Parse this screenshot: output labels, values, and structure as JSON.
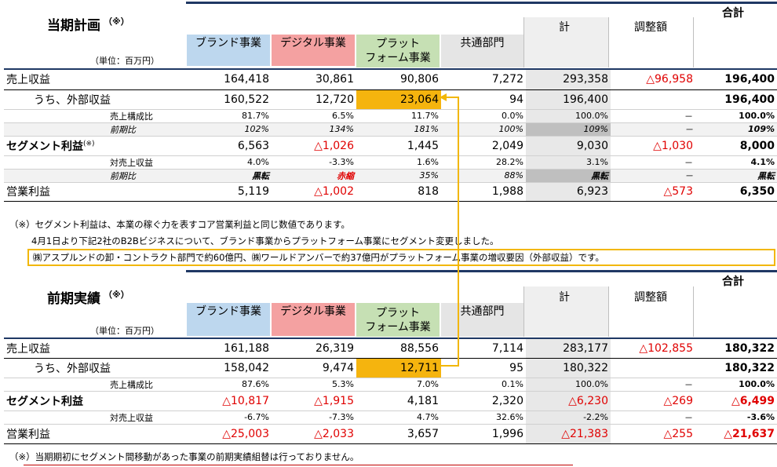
{
  "plan": {
    "title": "当期計画",
    "title_mark": "（※）",
    "unit": "（単位：百万円）",
    "total_label": "合計",
    "segments": [
      "ブランド事業",
      "デジタル事業",
      "プラットフォーム事業",
      "共通部門"
    ],
    "segment_lines": {
      "brand": "ブランド事業",
      "digital": "デジタル事業",
      "platform_1": "プラット",
      "platform_2": "フォーム事業",
      "common": "共通部門"
    },
    "col_total": "計",
    "col_adjust": "調整額",
    "rows": [
      {
        "label": "売上収益",
        "values": [
          "164,418",
          "30,861",
          "90,806",
          "7,272",
          "293,358",
          "△96,958",
          "196,400"
        ]
      },
      {
        "label": "うち、外部収益",
        "values": [
          "160,522",
          "12,720",
          "23,064",
          "94",
          "196,400",
          "",
          "196,400"
        ]
      },
      {
        "label": "売上構成比",
        "values": [
          "81.7%",
          "6.5%",
          "11.7%",
          "0.0%",
          "100.0%",
          "－",
          "100.0%"
        ]
      },
      {
        "label": "前期比",
        "values": [
          "102%",
          "134%",
          "181%",
          "100%",
          "109%",
          "－",
          "109%"
        ]
      },
      {
        "label": "セグメント利益",
        "label_mark": "(※)",
        "values": [
          "6,563",
          "△1,026",
          "1,445",
          "2,049",
          "9,030",
          "△1,030",
          "8,000"
        ]
      },
      {
        "label": "対売上収益",
        "values": [
          "4.0%",
          "-3.3%",
          "1.6%",
          "28.2%",
          "3.1%",
          "－",
          "4.1%"
        ]
      },
      {
        "label": "前期比",
        "values": [
          "黒転",
          "赤縮",
          "35%",
          "88%",
          "黒転",
          "－",
          "黒転"
        ]
      },
      {
        "label": "営業利益",
        "values": [
          "5,119",
          "△1,002",
          "818",
          "1,988",
          "6,923",
          "△573",
          "6,350"
        ]
      }
    ],
    "notes": [
      "（※）セグメント利益は、本業の稼ぐ力を表すコア営業利益と同じ数値であります。",
      "4月1日より下記2社のB2Bビジネスについて、ブランド事業からプラットフォーム事業にセグメント変更しました。",
      "㈱アスプルンドの卸・コントラクト部門で約60億円、㈱ワールドアンバーで約37億円がプラットフォーム事業の増収要因（外部収益）です。"
    ]
  },
  "actual": {
    "title": "前期実績",
    "title_mark": "（※）",
    "unit": "（単位：百万円）",
    "total_label": "合計",
    "segment_lines": {
      "brand": "ブランド事業",
      "digital": "デジタル事業",
      "platform_1": "プラット",
      "platform_2": "フォーム事業",
      "common": "共通部門"
    },
    "col_total": "計",
    "col_adjust": "調整額",
    "rows": [
      {
        "label": "売上収益",
        "values": [
          "161,188",
          "26,319",
          "88,556",
          "7,114",
          "283,177",
          "△102,855",
          "180,322"
        ]
      },
      {
        "label": "うち、外部収益",
        "values": [
          "158,042",
          "9,474",
          "12,711",
          "95",
          "180,322",
          "",
          "180,322"
        ]
      },
      {
        "label": "売上構成比",
        "values": [
          "87.6%",
          "5.3%",
          "7.0%",
          "0.1%",
          "100.0%",
          "－",
          "100.0%"
        ]
      },
      {
        "label": "セグメント利益",
        "values": [
          "△10,817",
          "△1,915",
          "4,181",
          "2,320",
          "△6,230",
          "△269",
          "△6,499"
        ]
      },
      {
        "label": "対売上収益",
        "values": [
          "-6.7%",
          "-7.3%",
          "4.7%",
          "32.6%",
          "-2.2%",
          "－",
          "-3.6%"
        ]
      },
      {
        "label": "営業利益",
        "values": [
          "△25,003",
          "△2,033",
          "3,657",
          "1,996",
          "△21,383",
          "△255",
          "△21,637"
        ]
      }
    ],
    "note": "（※）当期期初にセグメント間移動があった事業の前期実績組替は行っておりません。"
  },
  "colors": {
    "brand": "#bdd7ee",
    "digital": "#f4a1a1",
    "platform": "#c6e0b4",
    "common": "#e5e5e5",
    "highlight": "#f5b40e",
    "negative": "#e00000",
    "rule": "#1f3864"
  }
}
